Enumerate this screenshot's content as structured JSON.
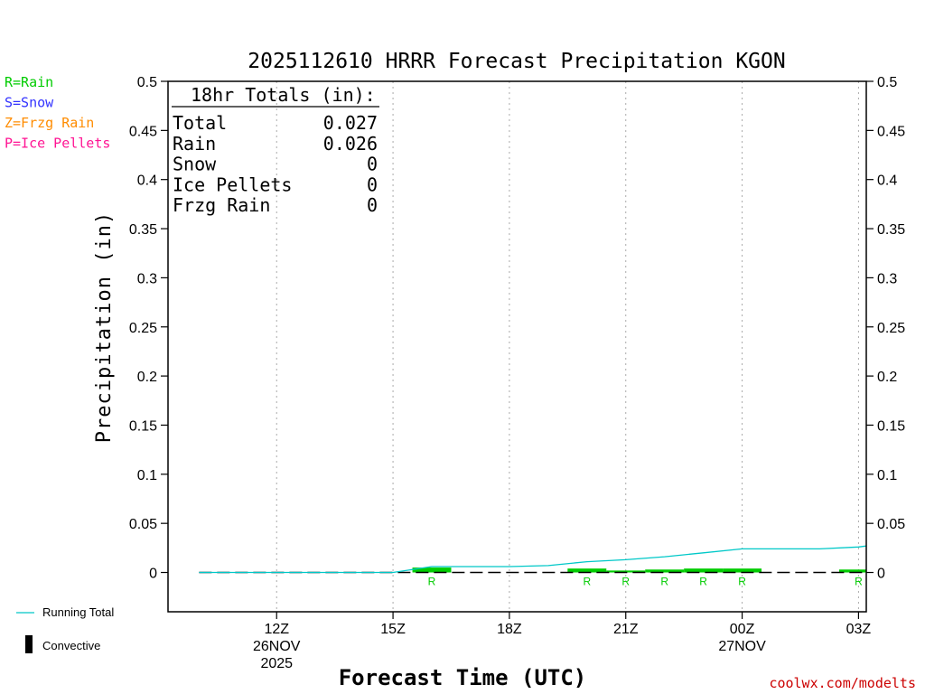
{
  "chart_data": {
    "type": "bar",
    "title": "2025112610 HRRR Forecast Precipitation KGON",
    "xlabel": "Forecast Time (UTC)",
    "ylabel": "Precipitation (in)",
    "ylim": [
      -0.04,
      0.5
    ],
    "yticks": [
      0,
      0.05,
      0.1,
      0.15,
      0.2,
      0.25,
      0.3,
      0.35,
      0.4,
      0.45,
      0.5
    ],
    "ytick_labels": [
      "0",
      "0.05",
      "0.1",
      "0.15",
      "0.2",
      "0.25",
      "0.3",
      "0.35",
      "0.4",
      "0.45",
      "0.5"
    ],
    "xrange_hours": [
      9.2,
      27.2
    ],
    "xticks": [
      {
        "hour": 12,
        "line1": "12Z",
        "line2": "26NOV",
        "line3": "2025"
      },
      {
        "hour": 15,
        "line1": "15Z",
        "line2": "",
        "line3": ""
      },
      {
        "hour": 18,
        "line1": "18Z",
        "line2": "",
        "line3": ""
      },
      {
        "hour": 21,
        "line1": "21Z",
        "line2": "",
        "line3": ""
      },
      {
        "hour": 24,
        "line1": "00Z",
        "line2": "27NOV",
        "line3": ""
      },
      {
        "hour": 27,
        "line1": "03Z",
        "line2": "",
        "line3": ""
      }
    ],
    "grid": true,
    "series": [
      {
        "name": "Hourly Rain",
        "type": "bar",
        "color": "#00cc00",
        "points": [
          {
            "hour": 16,
            "value": 0.005,
            "mark": "R"
          },
          {
            "hour": 20,
            "value": 0.004,
            "mark": "R"
          },
          {
            "hour": 21,
            "value": 0.002,
            "mark": "R"
          },
          {
            "hour": 22,
            "value": 0.003,
            "mark": "R"
          },
          {
            "hour": 23,
            "value": 0.004,
            "mark": "R"
          },
          {
            "hour": 24,
            "value": 0.004,
            "mark": "R"
          },
          {
            "hour": 27,
            "value": 0.003,
            "mark": "R"
          }
        ]
      },
      {
        "name": "Running Total",
        "type": "line",
        "color": "#00c8c8",
        "points": [
          [
            10,
            0
          ],
          [
            12,
            0
          ],
          [
            15,
            0
          ],
          [
            16,
            0.006
          ],
          [
            17,
            0.006
          ],
          [
            18,
            0.006
          ],
          [
            19,
            0.007
          ],
          [
            20,
            0.011
          ],
          [
            21,
            0.013
          ],
          [
            22,
            0.016
          ],
          [
            23,
            0.02
          ],
          [
            24,
            0.024
          ],
          [
            25,
            0.024
          ],
          [
            26,
            0.024
          ],
          [
            27,
            0.026
          ],
          [
            27.2,
            0.027
          ]
        ]
      }
    ]
  },
  "totals": {
    "header": "18hr Totals (in):",
    "rows": [
      {
        "label": "Total",
        "value": "0.027"
      },
      {
        "label": "Rain",
        "value": "0.026"
      },
      {
        "label": "Snow",
        "value": "0"
      },
      {
        "label": "Ice Pellets",
        "value": "0"
      },
      {
        "label": "Frzg Rain",
        "value": "0"
      }
    ]
  },
  "ptype_legend": [
    {
      "text": "R=Rain",
      "color": "#00cc00"
    },
    {
      "text": "S=Snow",
      "color": "#3333ff"
    },
    {
      "text": "Z=Frzg Rain",
      "color": "#ff8c00"
    },
    {
      "text": "P=Ice Pellets",
      "color": "#ff1493"
    }
  ],
  "line_legend": {
    "running_total": "Running Total",
    "convective": "Convective"
  },
  "credit": "coolwx.com/modelts"
}
